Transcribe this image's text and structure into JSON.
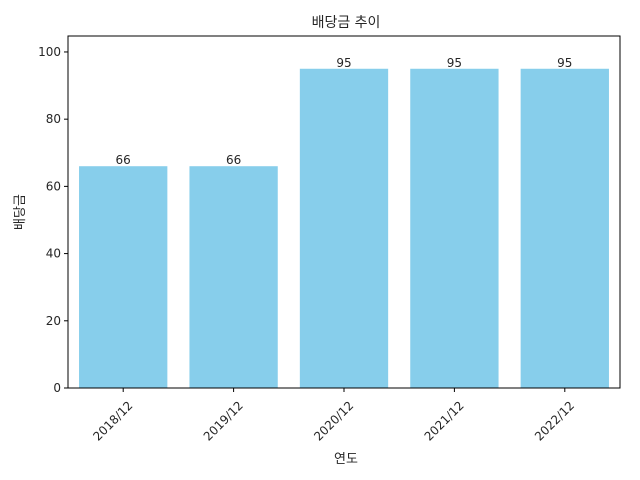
{
  "chart_data": {
    "type": "bar",
    "title": "배당금 추이",
    "xlabel": "연도",
    "ylabel": "배당금",
    "categories": [
      "2018/12",
      "2019/12",
      "2020/12",
      "2021/12",
      "2022/12"
    ],
    "values": [
      66,
      66,
      95,
      95,
      95
    ],
    "data_labels": [
      "66",
      "66",
      "95",
      "95",
      "95"
    ],
    "ylim": [
      0,
      104.75
    ],
    "yticks": [
      0,
      20,
      40,
      60,
      80,
      100
    ],
    "ytick_labels": [
      "0",
      "20",
      "40",
      "60",
      "80",
      "100"
    ],
    "xtick_rotation_deg": 45,
    "bar_color": "#87CEEB",
    "grid": false,
    "legend": "none"
  }
}
